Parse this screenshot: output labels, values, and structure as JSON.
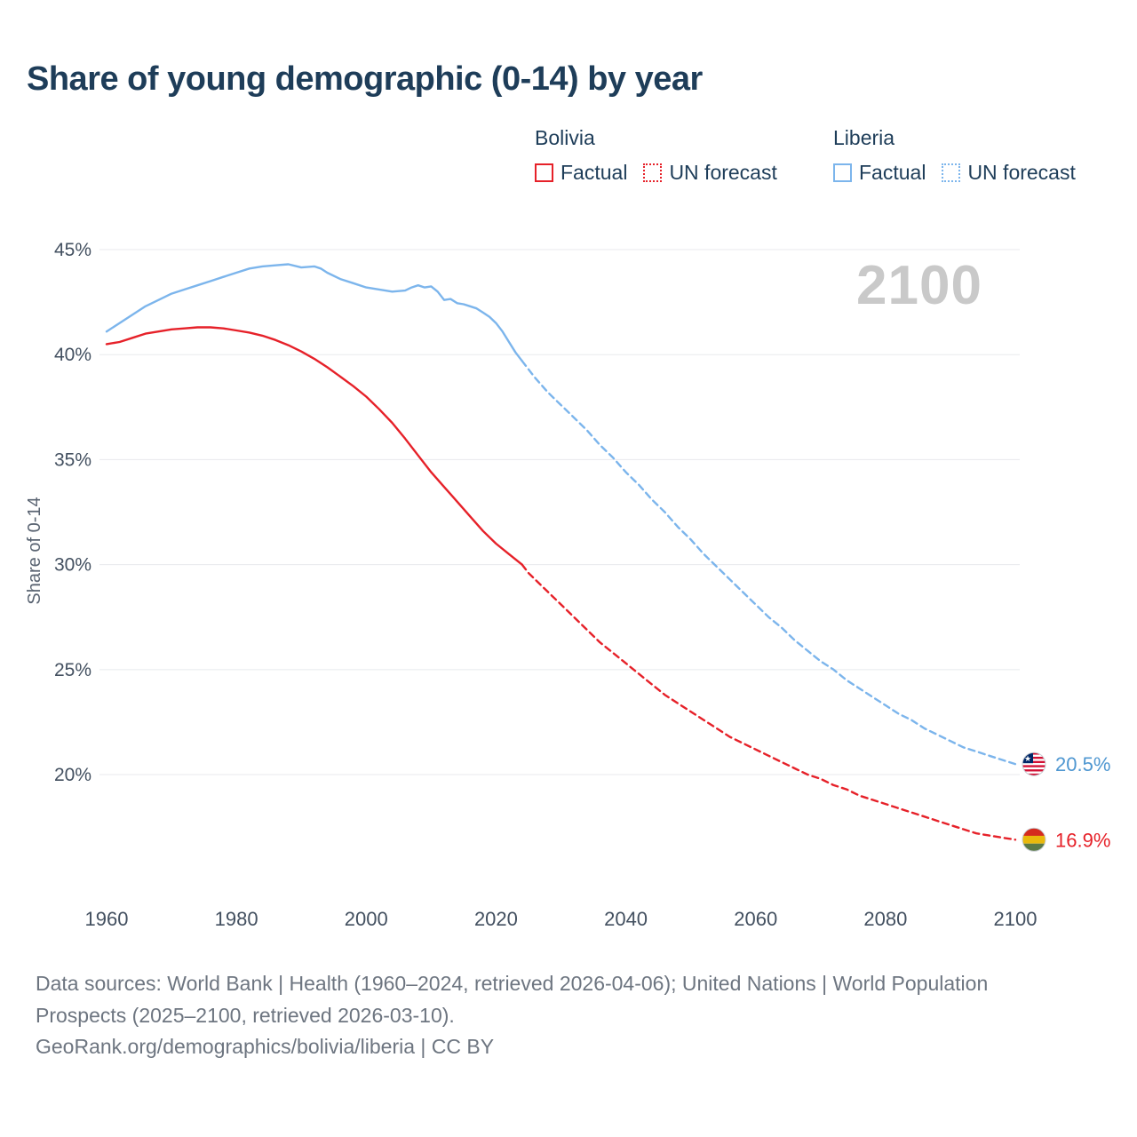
{
  "title": "Share of young demographic (0-14) by year",
  "watermark": "2100",
  "legend": {
    "groups": [
      {
        "country": "Bolivia",
        "color": "#e62129",
        "items": [
          {
            "label": "Factual",
            "style": "solid"
          },
          {
            "label": "UN forecast",
            "style": "dotted"
          }
        ]
      },
      {
        "country": "Liberia",
        "color": "#7cb5ec",
        "items": [
          {
            "label": "Factual",
            "style": "solid"
          },
          {
            "label": "UN forecast",
            "style": "dotted"
          }
        ]
      }
    ]
  },
  "chart_data": {
    "type": "line",
    "title": "Share of young demographic (0-14) by year",
    "xlabel": "",
    "ylabel": "Share of 0-14",
    "xlim": [
      1955,
      2115
    ],
    "ylim": [
      16,
      46
    ],
    "xticks": [
      1960,
      1980,
      2000,
      2020,
      2040,
      2060,
      2080,
      2100
    ],
    "yticks": [
      20,
      25,
      30,
      35,
      40,
      45
    ],
    "grid": "horizontal",
    "legend_position": "top-right",
    "series": [
      {
        "name": "Bolivia Factual",
        "color": "#e62129",
        "dash": "solid",
        "points": [
          [
            1960,
            40.5
          ],
          [
            1962,
            40.6
          ],
          [
            1964,
            40.8
          ],
          [
            1966,
            41.0
          ],
          [
            1968,
            41.1
          ],
          [
            1970,
            41.2
          ],
          [
            1972,
            41.25
          ],
          [
            1974,
            41.3
          ],
          [
            1976,
            41.3
          ],
          [
            1978,
            41.25
          ],
          [
            1980,
            41.15
          ],
          [
            1982,
            41.05
          ],
          [
            1984,
            40.9
          ],
          [
            1986,
            40.7
          ],
          [
            1988,
            40.45
          ],
          [
            1990,
            40.15
          ],
          [
            1992,
            39.8
          ],
          [
            1994,
            39.4
          ],
          [
            1996,
            38.95
          ],
          [
            1998,
            38.5
          ],
          [
            2000,
            38.0
          ],
          [
            2002,
            37.4
          ],
          [
            2004,
            36.75
          ],
          [
            2006,
            36.0
          ],
          [
            2008,
            35.2
          ],
          [
            2010,
            34.4
          ],
          [
            2012,
            33.7
          ],
          [
            2014,
            33.0
          ],
          [
            2016,
            32.3
          ],
          [
            2018,
            31.6
          ],
          [
            2020,
            31.0
          ],
          [
            2022,
            30.5
          ],
          [
            2024,
            30.0
          ]
        ]
      },
      {
        "name": "Bolivia UN forecast",
        "color": "#e62129",
        "dash": "dashed",
        "points": [
          [
            2024,
            30.0
          ],
          [
            2025,
            29.6
          ],
          [
            2026,
            29.3
          ],
          [
            2028,
            28.7
          ],
          [
            2030,
            28.1
          ],
          [
            2032,
            27.5
          ],
          [
            2034,
            26.9
          ],
          [
            2036,
            26.3
          ],
          [
            2038,
            25.8
          ],
          [
            2040,
            25.3
          ],
          [
            2042,
            24.8
          ],
          [
            2044,
            24.3
          ],
          [
            2046,
            23.8
          ],
          [
            2048,
            23.4
          ],
          [
            2050,
            23.0
          ],
          [
            2052,
            22.6
          ],
          [
            2054,
            22.2
          ],
          [
            2056,
            21.8
          ],
          [
            2058,
            21.5
          ],
          [
            2060,
            21.2
          ],
          [
            2062,
            20.9
          ],
          [
            2064,
            20.6
          ],
          [
            2066,
            20.3
          ],
          [
            2068,
            20.0
          ],
          [
            2070,
            19.8
          ],
          [
            2072,
            19.5
          ],
          [
            2074,
            19.3
          ],
          [
            2076,
            19.0
          ],
          [
            2078,
            18.8
          ],
          [
            2080,
            18.6
          ],
          [
            2082,
            18.4
          ],
          [
            2084,
            18.2
          ],
          [
            2086,
            18.0
          ],
          [
            2088,
            17.8
          ],
          [
            2090,
            17.6
          ],
          [
            2092,
            17.4
          ],
          [
            2094,
            17.2
          ],
          [
            2096,
            17.1
          ],
          [
            2098,
            17.0
          ],
          [
            2100,
            16.9
          ]
        ]
      },
      {
        "name": "Liberia Factual",
        "color": "#7cb5ec",
        "dash": "solid",
        "points": [
          [
            1960,
            41.1
          ],
          [
            1962,
            41.5
          ],
          [
            1964,
            41.9
          ],
          [
            1966,
            42.3
          ],
          [
            1968,
            42.6
          ],
          [
            1970,
            42.9
          ],
          [
            1972,
            43.1
          ],
          [
            1974,
            43.3
          ],
          [
            1976,
            43.5
          ],
          [
            1978,
            43.7
          ],
          [
            1980,
            43.9
          ],
          [
            1982,
            44.1
          ],
          [
            1984,
            44.2
          ],
          [
            1986,
            44.25
          ],
          [
            1988,
            44.3
          ],
          [
            1990,
            44.15
          ],
          [
            1992,
            44.2
          ],
          [
            1993,
            44.1
          ],
          [
            1994,
            43.9
          ],
          [
            1996,
            43.6
          ],
          [
            1998,
            43.4
          ],
          [
            2000,
            43.2
          ],
          [
            2002,
            43.1
          ],
          [
            2004,
            43.0
          ],
          [
            2006,
            43.05
          ],
          [
            2007,
            43.2
          ],
          [
            2008,
            43.3
          ],
          [
            2009,
            43.2
          ],
          [
            2010,
            43.25
          ],
          [
            2011,
            43.0
          ],
          [
            2012,
            42.6
          ],
          [
            2013,
            42.65
          ],
          [
            2014,
            42.45
          ],
          [
            2015,
            42.4
          ],
          [
            2016,
            42.3
          ],
          [
            2017,
            42.2
          ],
          [
            2018,
            42.0
          ],
          [
            2019,
            41.8
          ],
          [
            2020,
            41.5
          ],
          [
            2021,
            41.1
          ],
          [
            2022,
            40.6
          ],
          [
            2023,
            40.1
          ],
          [
            2024,
            39.7
          ]
        ]
      },
      {
        "name": "Liberia UN forecast",
        "color": "#7cb5ec",
        "dash": "dashed",
        "points": [
          [
            2024,
            39.7
          ],
          [
            2025,
            39.3
          ],
          [
            2026,
            38.9
          ],
          [
            2028,
            38.2
          ],
          [
            2030,
            37.6
          ],
          [
            2032,
            37.0
          ],
          [
            2034,
            36.4
          ],
          [
            2036,
            35.7
          ],
          [
            2038,
            35.1
          ],
          [
            2040,
            34.4
          ],
          [
            2042,
            33.8
          ],
          [
            2044,
            33.1
          ],
          [
            2046,
            32.5
          ],
          [
            2048,
            31.8
          ],
          [
            2050,
            31.2
          ],
          [
            2052,
            30.5
          ],
          [
            2054,
            29.9
          ],
          [
            2056,
            29.3
          ],
          [
            2058,
            28.7
          ],
          [
            2060,
            28.1
          ],
          [
            2062,
            27.5
          ],
          [
            2064,
            27.0
          ],
          [
            2066,
            26.4
          ],
          [
            2068,
            25.9
          ],
          [
            2070,
            25.4
          ],
          [
            2072,
            25.0
          ],
          [
            2074,
            24.5
          ],
          [
            2076,
            24.1
          ],
          [
            2078,
            23.7
          ],
          [
            2080,
            23.3
          ],
          [
            2082,
            22.9
          ],
          [
            2084,
            22.6
          ],
          [
            2086,
            22.2
          ],
          [
            2088,
            21.9
          ],
          [
            2090,
            21.6
          ],
          [
            2092,
            21.3
          ],
          [
            2094,
            21.1
          ],
          [
            2096,
            20.9
          ],
          [
            2098,
            20.7
          ],
          [
            2100,
            20.5
          ]
        ]
      }
    ],
    "end_labels": [
      {
        "series": "Liberia",
        "value": 20.5,
        "value_label": "20.5%",
        "color": "#4f97d1",
        "flag": "liberia"
      },
      {
        "series": "Bolivia",
        "value": 16.9,
        "value_label": "16.9%",
        "color": "#e62129",
        "flag": "bolivia"
      }
    ]
  },
  "footer": {
    "line1": "Data sources: World Bank | Health (1960–2024, retrieved 2026-04-06); United Nations | World Population Prospects (2025–2100, retrieved 2026-03-10).",
    "line2": "GeoRank.org/demographics/bolivia/liberia | CC BY"
  }
}
